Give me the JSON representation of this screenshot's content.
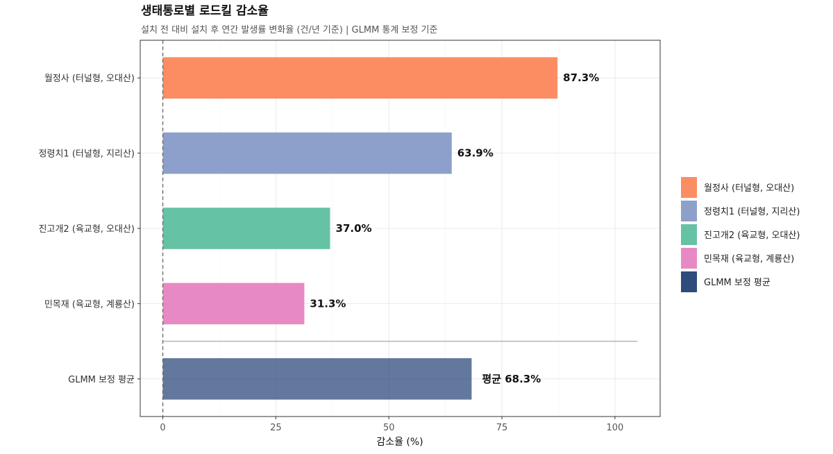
{
  "chart_data": {
    "type": "bar",
    "orientation": "horizontal",
    "title": "생태통로별 로드킬 감소율",
    "subtitle": "설치 전 대비 설치 후 연간 발생률 변화율 (건/년 기준) | GLMM 통계 보정 기준",
    "xlabel": "감소율 (%)",
    "ylabel": "",
    "xlim": [
      -5,
      110
    ],
    "xticks": [
      0,
      25,
      50,
      75,
      100
    ],
    "grid": true,
    "legend_position": "right",
    "categories": [
      "월정사 (터널형, 오대산)",
      "정령치1 (터널형, 지리산)",
      "진고개2 (육교형, 오대산)",
      "민목재 (육교형, 계룡산)",
      "GLMM 보정 평균"
    ],
    "values": [
      87.3,
      63.9,
      37.0,
      31.3,
      68.3
    ],
    "data_labels": [
      "87.3%",
      "63.9%",
      "37.0%",
      "31.3%",
      "평균 68.3%"
    ],
    "colors": [
      "#FC8D62",
      "#8DA0CB",
      "#66C2A5",
      "#E78AC3",
      "#2F4B7C"
    ],
    "bar_opacity": [
      1,
      1,
      1,
      1,
      0.75
    ],
    "reference_line_x": 0,
    "separator_range": [
      0,
      105
    ],
    "legend": [
      {
        "label": "월정사 (터널형, 오대산)",
        "color": "#FC8D62"
      },
      {
        "label": "정령치1 (터널형, 지리산)",
        "color": "#8DA0CB"
      },
      {
        "label": "진고개2 (육교형, 오대산)",
        "color": "#66C2A5"
      },
      {
        "label": "민목재 (육교형, 계룡산)",
        "color": "#E78AC3"
      },
      {
        "label": "GLMM 보정 평균",
        "color": "#2F4B7C"
      }
    ]
  }
}
